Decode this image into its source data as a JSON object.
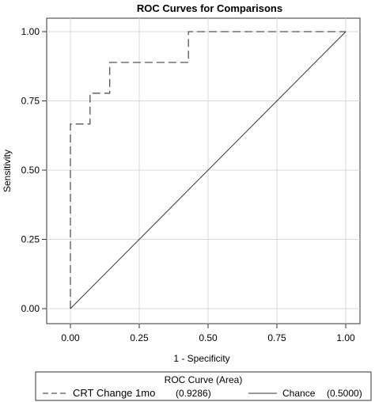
{
  "chart_data": {
    "type": "line",
    "title": "ROC Curves for Comparisons",
    "xlabel": "1 - Specificity",
    "ylabel": "Sensitivity",
    "xlim": [
      0,
      1
    ],
    "ylim": [
      0,
      1
    ],
    "xticks": [
      "0.00",
      "0.25",
      "0.50",
      "0.75",
      "1.00"
    ],
    "yticks": [
      "0.00",
      "0.25",
      "0.50",
      "0.75",
      "1.00"
    ],
    "grid": true,
    "legend": {
      "title": "ROC Curve (Area)",
      "position": "bottom",
      "entries": [
        {
          "label": "CRT Change 1mo",
          "area": "(0.9286)",
          "style": "dashed"
        },
        {
          "label": "Chance",
          "area": "(0.5000)",
          "style": "solid"
        }
      ]
    },
    "series": [
      {
        "name": "CRT Change 1mo",
        "style": "dashed",
        "color": "#555555",
        "x": [
          0,
          0,
          0,
          0.0714,
          0.0714,
          0.1429,
          0.1429,
          0.4286,
          0.4286,
          1.0
        ],
        "y": [
          0,
          0.6667,
          0.6667,
          0.6667,
          0.7778,
          0.7778,
          0.8889,
          0.8889,
          1.0,
          1.0
        ]
      },
      {
        "name": "Chance",
        "style": "solid",
        "color": "#333333",
        "x": [
          0,
          1
        ],
        "y": [
          0,
          1
        ]
      }
    ]
  }
}
